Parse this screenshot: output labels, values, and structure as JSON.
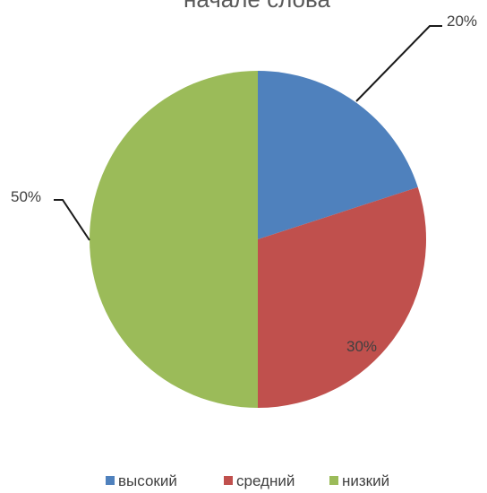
{
  "chart_data": {
    "type": "pie",
    "title": "началe слова",
    "categories": [
      "высокий",
      "средний",
      "низкий"
    ],
    "values": [
      20,
      30,
      50
    ],
    "labels": [
      "20%",
      "30%",
      "50%"
    ],
    "colors": [
      "#4F81BD",
      "#C0504D",
      "#9BBB59"
    ],
    "legend_position": "bottom",
    "start_angle_deg": 0,
    "direction": "clockwise"
  }
}
